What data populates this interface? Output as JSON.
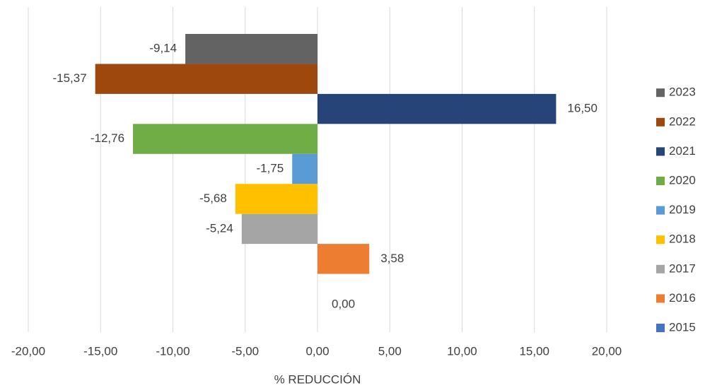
{
  "chart_data": {
    "type": "bar",
    "orientation": "horizontal",
    "x_label": "% REDUCCIÓN",
    "xlim": [
      -20,
      20
    ],
    "xticks": [
      {
        "value": -20,
        "label": "-20,00"
      },
      {
        "value": -15,
        "label": "-15,00"
      },
      {
        "value": -10,
        "label": "-10,00"
      },
      {
        "value": -5,
        "label": "-5,00"
      },
      {
        "value": 0,
        "label": "0,00"
      },
      {
        "value": 5,
        "label": "5,00"
      },
      {
        "value": 10,
        "label": "10,00"
      },
      {
        "value": 15,
        "label": "15,00"
      },
      {
        "value": 20,
        "label": "20,00"
      }
    ],
    "grid": true,
    "legend": "right",
    "series": [
      {
        "name": "2015",
        "color": "#4472c4",
        "values": [
          0.0
        ],
        "value_labels": [
          "0,00"
        ]
      },
      {
        "name": "2016",
        "color": "#ed7d31",
        "values": [
          3.58
        ],
        "value_labels": [
          "3,58"
        ]
      },
      {
        "name": "2017",
        "color": "#a5a5a5",
        "values": [
          -5.24
        ],
        "value_labels": [
          "-5,24"
        ]
      },
      {
        "name": "2018",
        "color": "#ffc000",
        "values": [
          -5.68
        ],
        "value_labels": [
          "-5,68"
        ]
      },
      {
        "name": "2019",
        "color": "#5b9bd5",
        "values": [
          -1.75
        ],
        "value_labels": [
          "-1,75"
        ]
      },
      {
        "name": "2020",
        "color": "#70ad47",
        "values": [
          -12.76
        ],
        "value_labels": [
          "-12,76"
        ]
      },
      {
        "name": "2021",
        "color": "#264478",
        "values": [
          16.5
        ],
        "value_labels": [
          "16,50"
        ]
      },
      {
        "name": "2022",
        "color": "#9e480e",
        "values": [
          -15.37
        ],
        "value_labels": [
          "-15,37"
        ]
      },
      {
        "name": "2023",
        "color": "#636363",
        "values": [
          -9.14
        ],
        "value_labels": [
          "-9,14"
        ]
      }
    ]
  }
}
